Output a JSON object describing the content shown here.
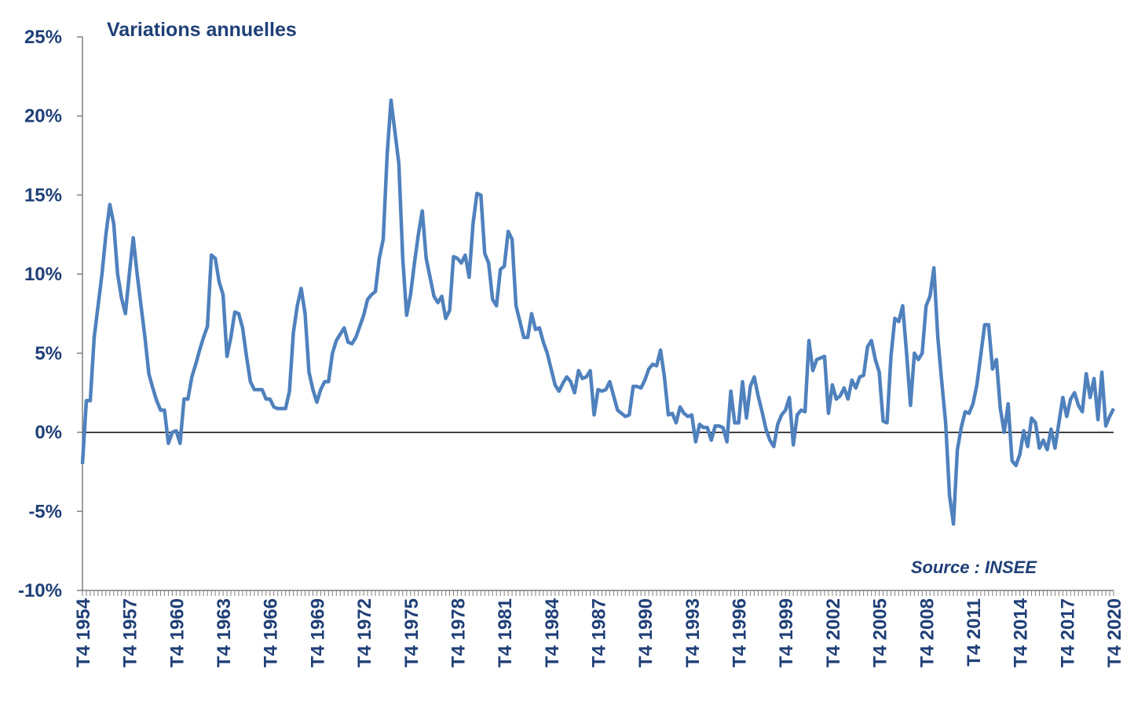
{
  "chart_data": {
    "type": "line",
    "title": "Variations annuelles",
    "annotation": "Source : INSEE",
    "color": "#4f81bd",
    "categories": [
      "T4 1954",
      null,
      null,
      null,
      null,
      null,
      null,
      null,
      null,
      null,
      null,
      null,
      "T4 1957",
      null,
      null,
      null,
      null,
      null,
      null,
      null,
      null,
      null,
      null,
      null,
      "T4 1960",
      null,
      null,
      null,
      null,
      null,
      null,
      null,
      null,
      null,
      null,
      null,
      "T4 1963",
      null,
      null,
      null,
      null,
      null,
      null,
      null,
      null,
      null,
      null,
      null,
      "T4 1966",
      null,
      null,
      null,
      null,
      null,
      null,
      null,
      null,
      null,
      null,
      null,
      "T4 1969",
      null,
      null,
      null,
      null,
      null,
      null,
      null,
      null,
      null,
      null,
      null,
      "T4 1972",
      null,
      null,
      null,
      null,
      null,
      null,
      null,
      null,
      null,
      null,
      null,
      "T4 1975",
      null,
      null,
      null,
      null,
      null,
      null,
      null,
      null,
      null,
      null,
      null,
      "T4 1978",
      null,
      null,
      null,
      null,
      null,
      null,
      null,
      null,
      null,
      null,
      null,
      "T4 1981",
      null,
      null,
      null,
      null,
      null,
      null,
      null,
      null,
      null,
      null,
      null,
      "T4 1984",
      null,
      null,
      null,
      null,
      null,
      null,
      null,
      null,
      null,
      null,
      null,
      "T4 1987",
      null,
      null,
      null,
      null,
      null,
      null,
      null,
      null,
      null,
      null,
      null,
      "T4 1990",
      null,
      null,
      null,
      null,
      null,
      null,
      null,
      null,
      null,
      null,
      null,
      "T4 1993",
      null,
      null,
      null,
      null,
      null,
      null,
      null,
      null,
      null,
      null,
      null,
      "T4 1996",
      null,
      null,
      null,
      null,
      null,
      null,
      null,
      null,
      null,
      null,
      null,
      "T4 1999",
      null,
      null,
      null,
      null,
      null,
      null,
      null,
      null,
      null,
      null,
      null,
      "T4 2002",
      null,
      null,
      null,
      null,
      null,
      null,
      null,
      null,
      null,
      null,
      null,
      "T4 2005",
      null,
      null,
      null,
      null,
      null,
      null,
      null,
      null,
      null,
      null,
      null,
      "T4 2008",
      null,
      null,
      null,
      null,
      null,
      null,
      null,
      null,
      null,
      null,
      null,
      "T4 2011",
      null,
      null,
      null,
      null,
      null,
      null,
      null,
      null,
      null,
      null,
      null,
      "T4 2014",
      null,
      null,
      null,
      null,
      null,
      null,
      null,
      null,
      null,
      null,
      null,
      "T4 2017",
      null,
      null,
      null,
      null,
      null,
      null,
      null,
      null,
      null,
      null,
      null,
      "T4 2020"
    ],
    "values": [
      -2,
      2,
      2,
      6,
      8,
      10,
      12.5,
      14.4,
      13.2,
      10,
      8.5,
      7.5,
      10,
      12.3,
      10,
      8,
      6,
      3.7,
      2.8,
      2,
      1.4,
      1.4,
      -0.7,
      0,
      0.1,
      -0.7,
      2.1,
      2.1,
      3.5,
      4.3,
      5.2,
      6,
      6.7,
      11.2,
      11,
      9.5,
      8.7,
      4.8,
      6,
      7.6,
      7.5,
      6.6,
      4.8,
      3.2,
      2.7,
      2.7,
      2.7,
      2.1,
      2.1,
      1.6,
      1.5,
      1.5,
      1.5,
      2.6,
      6.3,
      8,
      9.1,
      7.5,
      3.8,
      2.7,
      1.9,
      2.7,
      3.2,
      3.2,
      5,
      5.8,
      6.2,
      6.6,
      5.7,
      5.6,
      6,
      6.7,
      7.4,
      8.4,
      8.7,
      8.9,
      11,
      12.2,
      17.5,
      21,
      19,
      17,
      11,
      7.4,
      8.7,
      10.7,
      12.5,
      14,
      11,
      9.8,
      8.6,
      8.2,
      8.6,
      7.2,
      7.7,
      11.1,
      11,
      10.7,
      11.2,
      9.8,
      13.2,
      15.1,
      15,
      11.3,
      10.7,
      8.4,
      8,
      10.3,
      10.5,
      12.7,
      12.2,
      8,
      7,
      6,
      6,
      7.5,
      6.5,
      6.6,
      5.7,
      5,
      4,
      3,
      2.6,
      3.1,
      3.5,
      3.2,
      2.5,
      3.9,
      3.4,
      3.5,
      3.9,
      1.1,
      2.7,
      2.6,
      2.7,
      3.2,
      2.3,
      1.4,
      1.2,
      1,
      1.1,
      2.9,
      2.9,
      2.8,
      3.3,
      4,
      4.3,
      4.2,
      5.2,
      3.5,
      1.1,
      1.2,
      0.6,
      1.6,
      1.2,
      1,
      1.1,
      -0.6,
      0.5,
      0.3,
      0.3,
      -0.5,
      0.4,
      0.4,
      0.3,
      -0.6,
      2.6,
      0.6,
      0.6,
      3.2,
      0.9,
      2.9,
      3.5,
      2.3,
      1.3,
      0.2,
      -0.5,
      -0.9,
      0.5,
      1.1,
      1.4,
      2.2,
      -0.8,
      1.1,
      1.4,
      1.3,
      5.8,
      3.9,
      4.6,
      4.7,
      4.8,
      1.2,
      3,
      2.1,
      2.3,
      2.8,
      2.1,
      3.3,
      2.8,
      3.5,
      3.6,
      5.4,
      5.8,
      4.6,
      3.8,
      0.7,
      0.6,
      4.8,
      7.2,
      7,
      8,
      5,
      1.7,
      5,
      4.6,
      5,
      8,
      8.6,
      10.4,
      6,
      3.2,
      0.6,
      -4,
      -5.8,
      -1.1,
      0.3,
      1.3,
      1.2,
      1.8,
      3,
      4.9,
      6.8,
      6.8,
      4,
      4.6,
      1.5,
      0,
      1.8,
      -1.8,
      -2.1,
      -1.4,
      0.1,
      -0.9,
      0.9,
      0.6,
      -1,
      -0.5,
      -1.1,
      0.2,
      -1,
      0.6,
      2.2,
      1,
      2.1,
      2.5,
      1.7,
      1.3,
      3.7,
      2.2,
      3.4,
      0.8,
      3.8,
      0.4,
      1,
      1.5
    ],
    "ylim": [
      -10,
      25
    ],
    "yticks": [
      {
        "value": -10,
        "label": "-10%"
      },
      {
        "value": -5,
        "label": "-5%"
      },
      {
        "value": 0,
        "label": "0%"
      },
      {
        "value": 5,
        "label": "5%"
      },
      {
        "value": 10,
        "label": "10%"
      },
      {
        "value": 15,
        "label": "15%"
      },
      {
        "value": 20,
        "label": "20%"
      },
      {
        "value": 25,
        "label": "25%"
      }
    ],
    "zero_line": true
  }
}
